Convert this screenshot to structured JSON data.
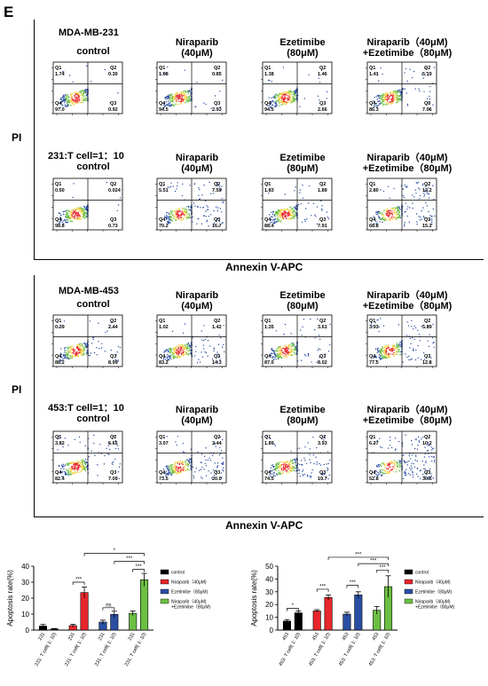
{
  "figure": {
    "panel_letter": "E",
    "axis_label_x": "Annexin V-APC",
    "axis_label_y": "PI"
  },
  "flow_blocks": [
    {
      "cell_line": "MDA-MB-231",
      "coculture_label": "231:T cell=1：10",
      "headers": [
        {
          "line1": "control",
          "line2": ""
        },
        {
          "line1": "Niraparib",
          "line2": "(40μM)"
        },
        {
          "line1": "Ezetimibe",
          "line2": "(80μM)"
        },
        {
          "line1": "Niraparib（40μM)",
          "line2": "+Ezetimibe（80μM)"
        }
      ],
      "rows": [
        [
          {
            "q1": "1.74",
            "q2": "0.30",
            "q3": "0.92",
            "q4": "97.0"
          },
          {
            "q1": "1.68",
            "q2": "0.85",
            "q3": "2.93",
            "q4": "94.5"
          },
          {
            "q1": "1.38",
            "q2": "1.46",
            "q3": "2.66",
            "q4": "94.5"
          },
          {
            "q1": "1.41",
            "q2": "5.19",
            "q3": "7.06",
            "q4": "86.3"
          }
        ],
        [
          {
            "q1": "0.50",
            "q2": "0.024",
            "q3": "0.73",
            "q4": "98.8"
          },
          {
            "q1": "5.51",
            "q2": "7.59",
            "q3": "16.7",
            "q4": "70.2"
          },
          {
            "q1": "1.83",
            "q2": "1.89",
            "q3": "7.91",
            "q4": "88.4"
          },
          {
            "q1": "2.80",
            "q2": "13.2",
            "q3": "15.2",
            "q4": "68.8"
          }
        ]
      ]
    },
    {
      "cell_line": "MDA-MB-453",
      "coculture_label": "453:T cell=1：10",
      "headers": [
        {
          "line1": "control",
          "line2": ""
        },
        {
          "line1": "Niraparib",
          "line2": "(40μM)"
        },
        {
          "line1": "Ezetimibe",
          "line2": "(80μM)"
        },
        {
          "line1": "Niraparib（40μM)",
          "line2": "+Ezetimibe（80μM)"
        }
      ],
      "rows": [
        [
          {
            "q1": "0.39",
            "q2": "2.44",
            "q3": "8.99",
            "q4": "88.2"
          },
          {
            "q1": "1.02",
            "q2": "1.42",
            "q3": "14.3",
            "q4": "83.2"
          },
          {
            "q1": "1.35",
            "q2": "3.61",
            "q3": "8.02",
            "q4": "87.0"
          },
          {
            "q1": "3.93",
            "q2": "5.89",
            "q3": "12.8",
            "q4": "77.5"
          }
        ],
        [
          {
            "q1": "3.82",
            "q2": "6.65",
            "q3": "7.09",
            "q4": "82.4"
          },
          {
            "q1": "3.07",
            "q2": "3.44",
            "q3": "20.0",
            "q4": "73.5"
          },
          {
            "q1": "1.89",
            "q2": "3.93",
            "q3": "19.7",
            "q4": "74.5"
          },
          {
            "q1": "6.37",
            "q2": "10.2",
            "q3": "30.6",
            "q4": "52.8"
          }
        ]
      ]
    }
  ],
  "legend": [
    {
      "label": "control",
      "color": "#000000"
    },
    {
      "label": "Niraparib（40μM)",
      "color": "#e8262b"
    },
    {
      "label": "Ezetimibe（80μM)",
      "color": "#2a4ea3"
    },
    {
      "label": "Niraparib（40μM)",
      "label2": "+Ezetimibe（80μM)",
      "color": "#6cbf43"
    }
  ],
  "chart_data": [
    {
      "type": "bar",
      "ylabel": "Apoptosis rate(%)",
      "ylim": [
        0,
        40
      ],
      "yticks": [
        0,
        10,
        20,
        30,
        40
      ],
      "categories": [
        "231",
        "231: T cell( 1: 10)",
        "231",
        "231: T cell( 1: 10)",
        "231",
        "231: T cell( 1: 10)",
        "231",
        "231: T cell( 1: 10)"
      ],
      "values": [
        2.5,
        0.7,
        2.8,
        23.5,
        5.0,
        9.8,
        10.5,
        31.5
      ],
      "errors": [
        1.0,
        0.3,
        0.8,
        3.5,
        1.2,
        2.0,
        1.5,
        4.0
      ],
      "colors": [
        "#000000",
        "#000000",
        "#e8262b",
        "#e8262b",
        "#2a4ea3",
        "#2a4ea3",
        "#6cbf43",
        "#6cbf43"
      ],
      "brackets": [
        {
          "from": 2,
          "to": 3,
          "label": "***",
          "y": 30
        },
        {
          "from": 4,
          "to": 5,
          "label": "ns",
          "y": 14
        },
        {
          "from": 6,
          "to": 7,
          "label": "***",
          "y": 38
        },
        {
          "from": 5,
          "to": 7,
          "label": "***",
          "y": 43
        },
        {
          "from": 3,
          "to": 7,
          "label": "*",
          "y": 48
        }
      ]
    },
    {
      "type": "bar",
      "ylabel": "Apoptosis rate(%)",
      "ylim": [
        0,
        50
      ],
      "yticks": [
        0,
        10,
        20,
        30,
        40,
        50
      ],
      "categories": [
        "453",
        "453: T cell( 1: 10)",
        "453",
        "453: T cell( 1: 10)",
        "453",
        "453: T cell( 1: 10)",
        "453",
        "453: T cell( 1: 10)"
      ],
      "values": [
        7.0,
        13.5,
        15.0,
        25.5,
        12.5,
        27.5,
        15.5,
        34.0
      ],
      "errors": [
        1.2,
        1.5,
        1.0,
        2.0,
        1.5,
        2.5,
        3.0,
        8.5
      ],
      "colors": [
        "#000000",
        "#000000",
        "#e8262b",
        "#e8262b",
        "#2a4ea3",
        "#2a4ea3",
        "#6cbf43",
        "#6cbf43"
      ],
      "brackets": [
        {
          "from": 0,
          "to": 1,
          "label": "*",
          "y": 17
        },
        {
          "from": 2,
          "to": 3,
          "label": "***",
          "y": 32
        },
        {
          "from": 4,
          "to": 5,
          "label": "***",
          "y": 35
        },
        {
          "from": 6,
          "to": 7,
          "label": "***",
          "y": 47
        },
        {
          "from": 5,
          "to": 7,
          "label": "***",
          "y": 52
        },
        {
          "from": 3,
          "to": 7,
          "label": "***",
          "y": 57
        }
      ]
    }
  ]
}
